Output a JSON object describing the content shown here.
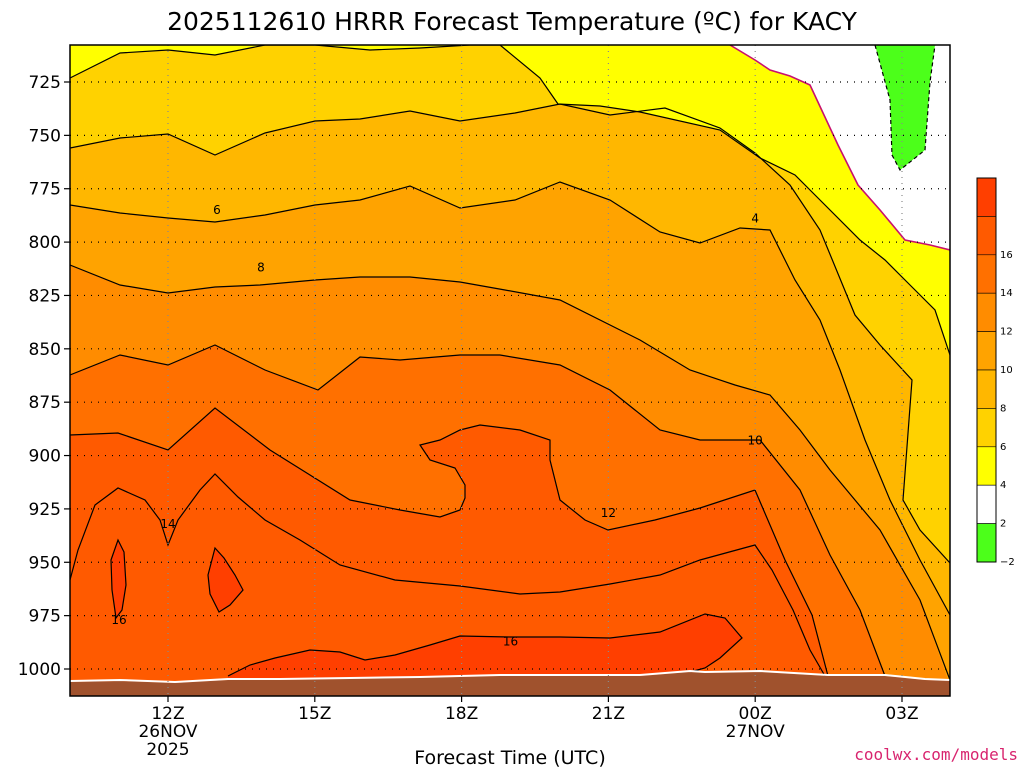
{
  "chart_data": {
    "type": "heatmap",
    "title": "2025112610 HRRR Forecast Temperature (ºC) for KACY",
    "xlabel": "Forecast Time (UTC)",
    "ylabel": "",
    "x_ticks": [
      {
        "hour": 12,
        "label": "12Z",
        "sub1": "26NOV",
        "sub2": "2025"
      },
      {
        "hour": 15,
        "label": "15Z",
        "sub1": "",
        "sub2": ""
      },
      {
        "hour": 18,
        "label": "18Z",
        "sub1": "",
        "sub2": ""
      },
      {
        "hour": 21,
        "label": "21Z",
        "sub1": "",
        "sub2": ""
      },
      {
        "hour": 24,
        "label": "00Z",
        "sub1": "27NOV",
        "sub2": ""
      },
      {
        "hour": 27,
        "label": "03Z",
        "sub1": "",
        "sub2": ""
      }
    ],
    "y_ticks": [
      {
        "p": 725,
        "label": "725"
      },
      {
        "p": 750,
        "label": "750"
      },
      {
        "p": 775,
        "label": "775"
      },
      {
        "p": 800,
        "label": "800"
      },
      {
        "p": 825,
        "label": "825"
      },
      {
        "p": 850,
        "label": "850"
      },
      {
        "p": 875,
        "label": "875"
      },
      {
        "p": 900,
        "label": "900"
      },
      {
        "p": 925,
        "label": "925"
      },
      {
        "p": 950,
        "label": "950"
      },
      {
        "p": 975,
        "label": "975"
      },
      {
        "p": 1000,
        "label": "1000"
      }
    ],
    "xlim_hours": [
      10,
      28
    ],
    "ylim_hPa": [
      712,
      1013
    ],
    "grid": true,
    "units": "ºC",
    "contour_labels": [
      {
        "text": "4",
        "hour": 24.0,
        "p": 789
      },
      {
        "text": "6",
        "hour": 13.0,
        "p": 785
      },
      {
        "text": "8",
        "hour": 13.9,
        "p": 812
      },
      {
        "text": "10",
        "hour": 24.0,
        "p": 893
      },
      {
        "text": "12",
        "hour": 21.0,
        "p": 927
      },
      {
        "text": "14",
        "hour": 12.0,
        "p": 932
      },
      {
        "text": "16",
        "hour": 11.0,
        "p": 977
      },
      {
        "text": "16",
        "hour": 19.0,
        "p": 987
      }
    ],
    "colorbar": {
      "levels": [
        {
          "label": "",
          "color": "#ff3f00"
        },
        {
          "label": "16",
          "color": "#ff5a00"
        },
        {
          "label": "14",
          "color": "#ff7000"
        },
        {
          "label": "12",
          "color": "#ff8c00"
        },
        {
          "label": "10",
          "color": "#ffa300"
        },
        {
          "label": "8",
          "color": "#ffb700"
        },
        {
          "label": "6",
          "color": "#ffd200"
        },
        {
          "label": "4",
          "color": "#ffff00"
        },
        {
          "label": "2",
          "color": "#ffffff"
        },
        {
          "label": "−2",
          "color": "#4cff1a"
        }
      ],
      "bottom_label": "−2"
    },
    "colors": {
      "ground": "#a0522d",
      "freezing_line": "#c8106e",
      "contour": "#000000"
    }
  },
  "credit": "coolwx.com/models",
  "credit_color": "#d8246e"
}
